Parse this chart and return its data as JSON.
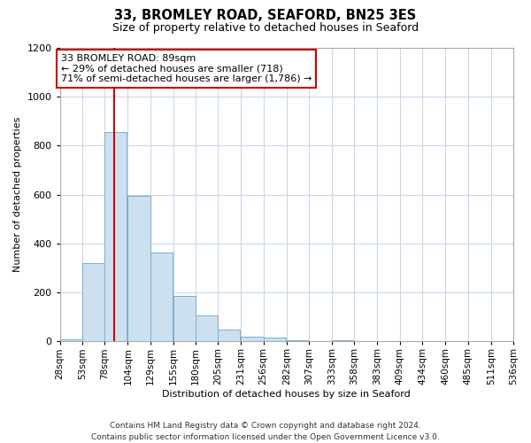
{
  "title": "33, BROMLEY ROAD, SEAFORD, BN25 3ES",
  "subtitle": "Size of property relative to detached houses in Seaford",
  "xlabel": "Distribution of detached houses by size in Seaford",
  "ylabel": "Number of detached properties",
  "bar_left_edges": [
    28,
    53,
    78,
    104,
    129,
    155,
    180,
    205,
    231,
    256,
    282,
    307,
    333,
    358,
    383,
    409,
    434,
    460,
    485,
    511
  ],
  "bar_heights": [
    10,
    320,
    855,
    595,
    365,
    185,
    105,
    47,
    20,
    15,
    5,
    0,
    5,
    0,
    0,
    0,
    0,
    0,
    0,
    0
  ],
  "bin_width": 25,
  "bar_color": "#cce0f0",
  "bar_edge_color": "#7aaed0",
  "property_value": 89,
  "red_line_color": "#cc0000",
  "annotation_line1": "33 BROMLEY ROAD: 89sqm",
  "annotation_line2": "← 29% of detached houses are smaller (718)",
  "annotation_line3": "71% of semi-detached houses are larger (1,786) →",
  "annotation_box_color": "#ffffff",
  "annotation_box_edge": "#cc0000",
  "ylim": [
    0,
    1200
  ],
  "yticks": [
    0,
    200,
    400,
    600,
    800,
    1000,
    1200
  ],
  "xtick_labels": [
    "28sqm",
    "53sqm",
    "78sqm",
    "104sqm",
    "129sqm",
    "155sqm",
    "180sqm",
    "205sqm",
    "231sqm",
    "256sqm",
    "282sqm",
    "307sqm",
    "333sqm",
    "358sqm",
    "383sqm",
    "409sqm",
    "434sqm",
    "460sqm",
    "485sqm",
    "511sqm",
    "536sqm"
  ],
  "footer_line1": "Contains HM Land Registry data © Crown copyright and database right 2024.",
  "footer_line2": "Contains public sector information licensed under the Open Government Licence v3.0.",
  "background_color": "#ffffff",
  "grid_color": "#c8d8e8",
  "title_fontsize": 10.5,
  "subtitle_fontsize": 9,
  "axis_label_fontsize": 8,
  "tick_fontsize": 7.5,
  "annotation_fontsize": 8,
  "footer_fontsize": 6.5
}
